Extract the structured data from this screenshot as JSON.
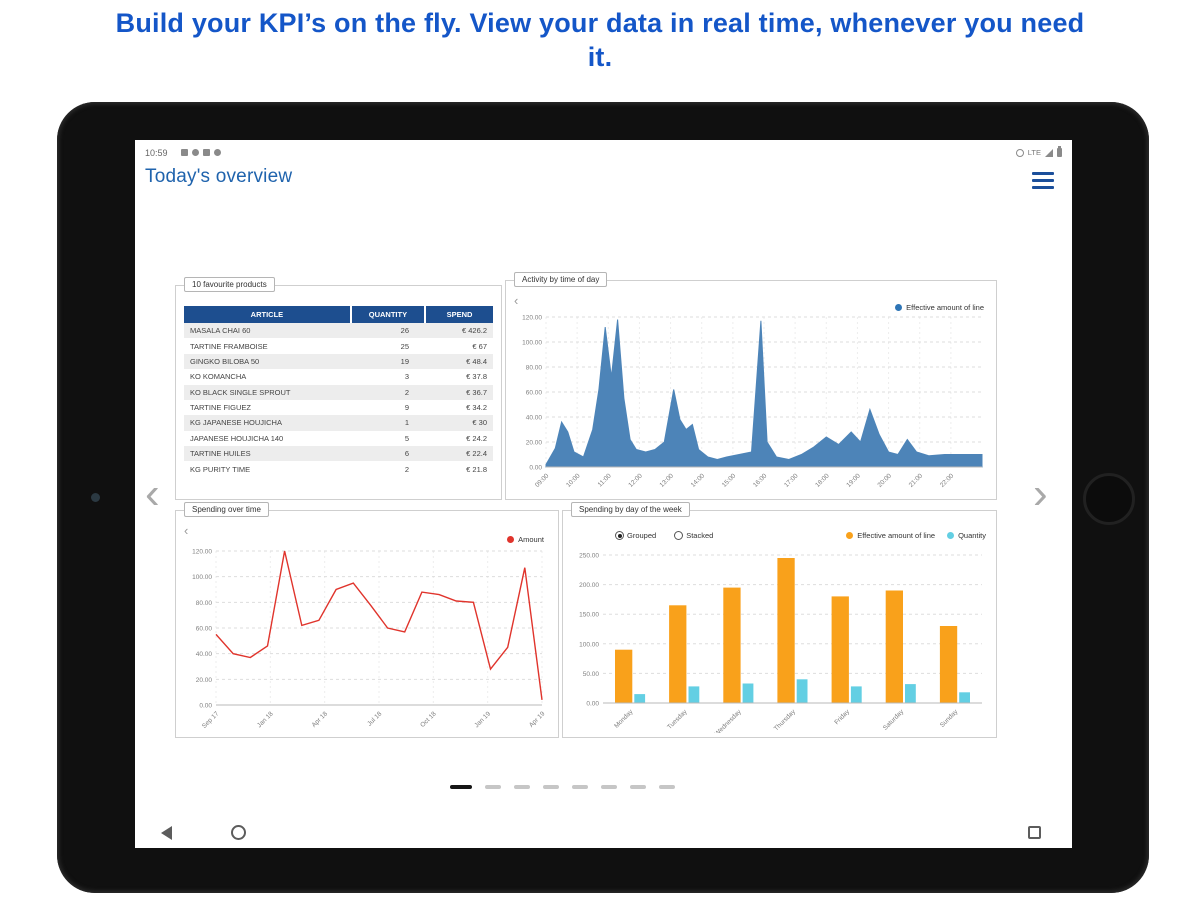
{
  "headline": "Build your KPI’s on the fly. View your data in real time, whenever you need it.",
  "glyphs": {
    "prev": "‹",
    "next": "›"
  },
  "statusbar": {
    "time": "10:59",
    "lte": "LTE",
    "left_icons": [
      "sync-icon",
      "usb-icon",
      "screenshot-icon",
      "app-notification-icon"
    ],
    "right_icons": [
      "data-saver-icon",
      "lte-signal-icon",
      "battery-icon"
    ]
  },
  "app": {
    "title": "Today's overview"
  },
  "pagination": {
    "total": 8,
    "active_index": 0
  },
  "panels": {
    "favourites": {
      "label": "10 favourite products",
      "columns": [
        "ARTICLE",
        "QUANTITY",
        "SPEND"
      ],
      "rows": [
        [
          "MASALA CHAI 60",
          "26",
          "€ 426.2"
        ],
        [
          "TARTINE FRAMBOISE",
          "25",
          "€ 67"
        ],
        [
          "GINGKO BILOBA 50",
          "19",
          "€ 48.4"
        ],
        [
          "KO KOMANCHA",
          "3",
          "€ 37.8"
        ],
        [
          "KO BLACK SINGLE SPROUT",
          "2",
          "€ 36.7"
        ],
        [
          "TARTINE FIGUEZ",
          "9",
          "€ 34.2"
        ],
        [
          "KG JAPANESE HOUJICHA",
          "1",
          "€ 30"
        ],
        [
          "JAPANESE HOUJICHA 140",
          "5",
          "€ 24.2"
        ],
        [
          "TARTINE HUILES",
          "6",
          "€ 22.4"
        ],
        [
          "KG PURITY TIME",
          "2",
          "€ 21.8"
        ]
      ]
    },
    "activity": {
      "label": "Activity by time of day",
      "legend_label": "Effective amount of line",
      "legend_color": "#2e75b6"
    },
    "spending": {
      "label": "Spending over time",
      "legend_label": "Amount",
      "legend_color": "#e0342c"
    },
    "week": {
      "label": "Spending by day of the week",
      "radio_grouped": "Grouped",
      "radio_stacked": "Stacked",
      "legend1": "Effective amount of line",
      "legend1_color": "#f9a11b",
      "legend2": "Quantity",
      "legend2_color": "#63cfe3"
    }
  },
  "chart_data": [
    {
      "type": "area",
      "title": "Activity by time of day",
      "legend": "Effective amount of line",
      "color": "#4d84b8",
      "ylim": [
        0,
        120
      ],
      "yticks": [
        0,
        20,
        40,
        60,
        80,
        100,
        120
      ],
      "xlim": [
        9,
        23
      ],
      "xticks": [
        9,
        10,
        11,
        12,
        13,
        14,
        15,
        16,
        17,
        18,
        19,
        20,
        21,
        22
      ],
      "xtick_labels": [
        "09:00",
        "10:00",
        "11:00",
        "12:00",
        "13:00",
        "14:00",
        "15:00",
        "16:00",
        "17:00",
        "18:00",
        "19:00",
        "20:00",
        "21:00",
        "22:00"
      ],
      "points": [
        [
          9,
          2
        ],
        [
          9.3,
          15
        ],
        [
          9.5,
          36
        ],
        [
          9.7,
          28
        ],
        [
          9.9,
          12
        ],
        [
          10.2,
          8
        ],
        [
          10.5,
          30
        ],
        [
          10.7,
          62
        ],
        [
          10.9,
          112
        ],
        [
          11.1,
          72
        ],
        [
          11.3,
          118
        ],
        [
          11.5,
          55
        ],
        [
          11.7,
          22
        ],
        [
          11.9,
          14
        ],
        [
          12.2,
          12
        ],
        [
          12.5,
          14
        ],
        [
          12.8,
          20
        ],
        [
          13.1,
          62
        ],
        [
          13.3,
          38
        ],
        [
          13.5,
          30
        ],
        [
          13.7,
          34
        ],
        [
          13.9,
          14
        ],
        [
          14.2,
          8
        ],
        [
          14.5,
          6
        ],
        [
          14.8,
          8
        ],
        [
          15.2,
          10
        ],
        [
          15.6,
          12
        ],
        [
          15.9,
          117
        ],
        [
          16.1,
          20
        ],
        [
          16.4,
          8
        ],
        [
          16.8,
          6
        ],
        [
          17.2,
          10
        ],
        [
          17.6,
          16
        ],
        [
          18,
          24
        ],
        [
          18.4,
          18
        ],
        [
          18.8,
          28
        ],
        [
          19.1,
          20
        ],
        [
          19.4,
          46
        ],
        [
          19.7,
          26
        ],
        [
          20,
          12
        ],
        [
          20.3,
          10
        ],
        [
          20.6,
          22
        ],
        [
          20.9,
          12
        ],
        [
          21.3,
          9
        ],
        [
          21.8,
          10
        ],
        [
          22.3,
          10
        ],
        [
          23,
          10
        ]
      ]
    },
    {
      "type": "line",
      "title": "Spending over time",
      "legend": "Amount",
      "color": "#e0342c",
      "ylim": [
        0,
        120
      ],
      "yticks": [
        0,
        20,
        40,
        60,
        80,
        100,
        120
      ],
      "xtick_labels": [
        "Sep 17",
        "Jan 18",
        "Apr 18",
        "Jul 18",
        "Oct 18",
        "Jan 19",
        "Apr 19"
      ],
      "values": [
        55,
        40,
        37,
        46,
        120,
        62,
        66,
        90,
        95,
        78,
        60,
        57,
        88,
        86,
        81,
        80,
        28,
        45,
        107,
        4
      ]
    },
    {
      "type": "bar",
      "title": "Spending by day of the week",
      "mode": "grouped",
      "ylim": [
        0,
        250
      ],
      "yticks": [
        0,
        50,
        100,
        150,
        200,
        250
      ],
      "categories": [
        "Monday",
        "Tuesday",
        "Wednesday",
        "Thursday",
        "Friday",
        "Saturday",
        "Sunday"
      ],
      "series": [
        {
          "name": "Effective amount of line",
          "color": "#f9a11b",
          "values": [
            90,
            165,
            195,
            245,
            180,
            190,
            130
          ]
        },
        {
          "name": "Quantity",
          "color": "#63cfe3",
          "values": [
            15,
            28,
            33,
            40,
            28,
            32,
            18
          ]
        }
      ]
    }
  ]
}
